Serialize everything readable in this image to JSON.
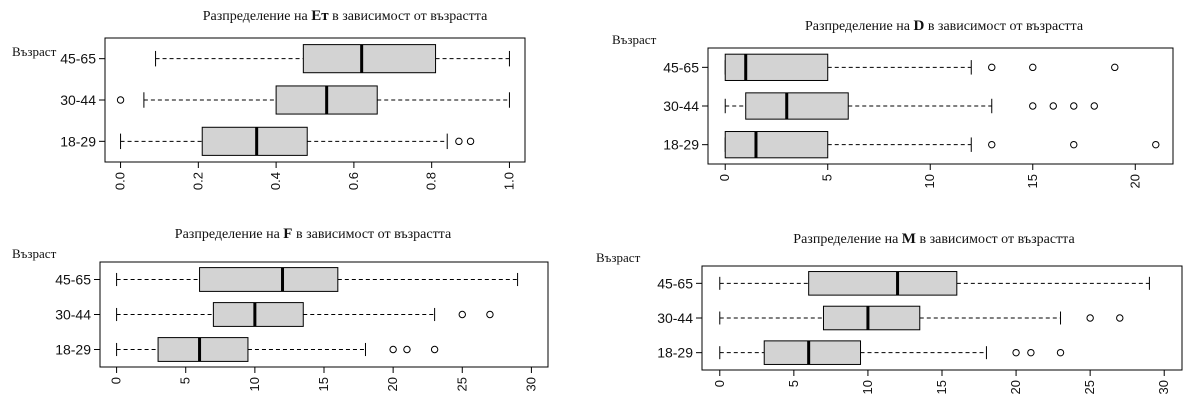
{
  "chart_data": [
    {
      "type": "boxplot",
      "orientation": "horizontal",
      "title_prefix": "Разпределение на ",
      "title_var": "Eт",
      "title_suffix": " в зависимост от възрастта",
      "ylabel": "Възраст",
      "xlim": [
        0,
        1
      ],
      "xticks": [
        "0.0",
        "0.2",
        "0.4",
        "0.6",
        "0.8",
        "1.0"
      ],
      "xtick_values": [
        0,
        0.2,
        0.4,
        0.6,
        0.8,
        1.0
      ],
      "categories": [
        "45-65",
        "30-44",
        "18-29"
      ],
      "boxes": [
        {
          "category": "45-65",
          "min": 0.09,
          "q1": 0.47,
          "median": 0.62,
          "q3": 0.81,
          "max": 1.0,
          "outliers": []
        },
        {
          "category": "30-44",
          "min": 0.06,
          "q1": 0.4,
          "median": 0.53,
          "q3": 0.66,
          "max": 1.0,
          "outliers": [
            0.0
          ]
        },
        {
          "category": "18-29",
          "min": 0.0,
          "q1": 0.21,
          "median": 0.35,
          "q3": 0.48,
          "max": 0.84,
          "outliers": [
            0.87,
            0.9
          ]
        }
      ]
    },
    {
      "type": "boxplot",
      "orientation": "horizontal",
      "title_prefix": "Разпределение на ",
      "title_var": "D",
      "title_suffix": " в зависимост от възрастта",
      "ylabel": "Възраст",
      "xlim": [
        0,
        21
      ],
      "xticks": [
        "0",
        "5",
        "10",
        "15",
        "20"
      ],
      "xtick_values": [
        0,
        5,
        10,
        15,
        20
      ],
      "categories": [
        "45-65",
        "30-44",
        "18-29"
      ],
      "boxes": [
        {
          "category": "45-65",
          "min": 0,
          "q1": 0,
          "median": 1,
          "q3": 5,
          "max": 12,
          "outliers": [
            13,
            15,
            19
          ]
        },
        {
          "category": "30-44",
          "min": 0,
          "q1": 1,
          "median": 3,
          "q3": 6,
          "max": 13,
          "outliers": [
            15,
            16,
            17,
            18
          ]
        },
        {
          "category": "18-29",
          "min": 0,
          "q1": 0,
          "median": 1.5,
          "q3": 5,
          "max": 12,
          "outliers": [
            13,
            17,
            21
          ]
        }
      ]
    },
    {
      "type": "boxplot",
      "orientation": "horizontal",
      "title_prefix": "Разпределение на ",
      "title_var": "F",
      "title_suffix": " в зависимост от възрастта",
      "ylabel": "Възраст",
      "xlim": [
        0,
        30
      ],
      "xticks": [
        "0",
        "5",
        "10",
        "15",
        "20",
        "25",
        "30"
      ],
      "xtick_values": [
        0,
        5,
        10,
        15,
        20,
        25,
        30
      ],
      "categories": [
        "45-65",
        "30-44",
        "18-29"
      ],
      "boxes": [
        {
          "category": "45-65",
          "min": 0,
          "q1": 6,
          "median": 12,
          "q3": 16,
          "max": 29,
          "outliers": []
        },
        {
          "category": "30-44",
          "min": 0,
          "q1": 7,
          "median": 10,
          "q3": 13.5,
          "max": 23,
          "outliers": [
            25,
            27
          ]
        },
        {
          "category": "18-29",
          "min": 0,
          "q1": 3,
          "median": 6,
          "q3": 9.5,
          "max": 18,
          "outliers": [
            20,
            21,
            23
          ]
        }
      ]
    },
    {
      "type": "boxplot",
      "orientation": "horizontal",
      "title_prefix": "Разпределение на ",
      "title_var": "M",
      "title_suffix": " в зависимост от възрастта",
      "ylabel": "Възраст",
      "xlim": [
        0,
        30
      ],
      "xticks": [
        "0",
        "5",
        "10",
        "15",
        "20",
        "25",
        "30"
      ],
      "xtick_values": [
        0,
        5,
        10,
        15,
        20,
        25,
        30
      ],
      "categories": [
        "45-65",
        "30-44",
        "18-29"
      ],
      "boxes": [
        {
          "category": "45-65",
          "min": 0,
          "q1": 6,
          "median": 12,
          "q3": 16,
          "max": 29,
          "outliers": []
        },
        {
          "category": "30-44",
          "min": 0,
          "q1": 7,
          "median": 10,
          "q3": 13.5,
          "max": 23,
          "outliers": [
            25,
            27
          ]
        },
        {
          "category": "18-29",
          "min": 0,
          "q1": 3,
          "median": 6,
          "q3": 9.5,
          "max": 18,
          "outliers": [
            20,
            21,
            23
          ]
        }
      ]
    }
  ],
  "colors": {
    "box_fill": "#d3d3d3",
    "line": "#000000"
  }
}
